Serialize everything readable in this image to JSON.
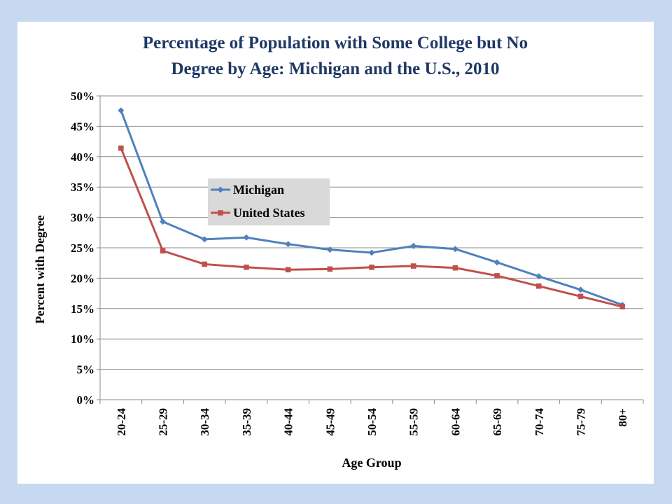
{
  "chart_data": {
    "type": "line",
    "title_line1": "Percentage of Population with Some College but No",
    "title_line2": "Degree by Age: Michigan and the U.S.,  2010",
    "xlabel": "Age Group",
    "ylabel": "Percent with Degree",
    "categories": [
      "20-24",
      "25-29",
      "30-34",
      "35-39",
      "40-44",
      "45-49",
      "50-54",
      "55-59",
      "60-64",
      "65-69",
      "70-74",
      "75-79",
      "80+"
    ],
    "ylim": [
      0,
      50
    ],
    "yticks": [
      "0%",
      "5%",
      "10%",
      "15%",
      "20%",
      "25%",
      "30%",
      "35%",
      "40%",
      "45%",
      "50%"
    ],
    "grid": true,
    "legend_position": "upper-left inside plot",
    "series": [
      {
        "name": "Michigan",
        "color": "#4f81bd",
        "marker": "diamond",
        "values": [
          47.6,
          29.3,
          26.4,
          26.7,
          25.6,
          24.7,
          24.2,
          25.3,
          24.8,
          22.6,
          20.3,
          18.1,
          15.6
        ]
      },
      {
        "name": "United States",
        "color": "#c0504d",
        "marker": "square",
        "values": [
          41.4,
          24.5,
          22.3,
          21.8,
          21.4,
          21.5,
          21.8,
          22.0,
          21.7,
          20.4,
          18.7,
          17.0,
          15.3
        ]
      }
    ]
  }
}
